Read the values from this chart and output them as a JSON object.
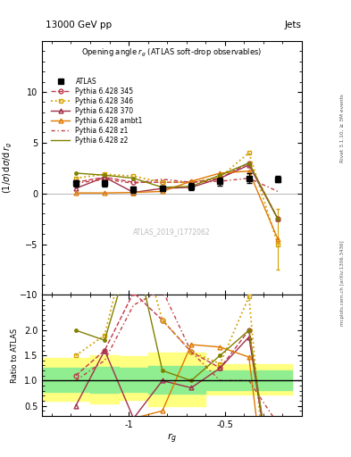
{
  "title_top": "13000 GeV pp",
  "title_right": "Jets",
  "plot_title": "Opening angle r_g (ATLAS soft-drop observables)",
  "ylabel_main": "(1/σ) dσ/d r_g",
  "ylabel_ratio": "Ratio to ATLAS",
  "xlabel": "r_g",
  "atlas_label": "ATLAS_2019_I1772062",
  "rivet_label": "Rivet 3.1.10, ≥ 3M events",
  "arxiv_label": "mcplots.cern.ch [arXiv:1306.3436]",
  "ylim_main": [
    -10,
    15
  ],
  "ylim_ratio": [
    0.3,
    2.7
  ],
  "xlim": [
    -1.45,
    -0.1
  ],
  "x": [
    -1.275,
    -1.125,
    -0.975,
    -0.825,
    -0.675,
    -0.525,
    -0.375,
    -0.225
  ],
  "bin_edges": [
    -1.45,
    -1.2,
    -1.05,
    -0.9,
    -0.75,
    -0.6,
    -0.45,
    -0.3,
    -0.15
  ],
  "atlas_y": [
    1.0,
    1.0,
    0.4,
    0.5,
    0.7,
    1.2,
    1.5,
    1.4
  ],
  "atlas_yerr": [
    0.3,
    0.3,
    0.3,
    0.3,
    0.35,
    0.4,
    0.5,
    0.3
  ],
  "p345_y": [
    1.1,
    1.6,
    1.1,
    1.1,
    1.1,
    1.5,
    3.0,
    -2.5
  ],
  "p346_y": [
    1.5,
    1.9,
    1.7,
    1.1,
    1.1,
    1.6,
    4.0,
    -5.0
  ],
  "p370_y": [
    0.5,
    1.6,
    0.1,
    0.5,
    0.6,
    1.5,
    2.8,
    -2.5
  ],
  "pambt1_y": [
    0.05,
    0.05,
    0.1,
    0.2,
    1.2,
    2.0,
    2.2,
    -4.5
  ],
  "pz1_y": [
    1.0,
    1.4,
    1.0,
    1.4,
    1.1,
    1.2,
    1.5,
    0.2
  ],
  "pz2_y": [
    2.0,
    1.8,
    1.5,
    0.6,
    0.7,
    1.8,
    3.0,
    -2.5
  ],
  "color_345": "#c0394b",
  "color_346": "#d4a000",
  "color_370": "#a0304a",
  "color_ambt1": "#e07800",
  "color_z1": "#c04040",
  "color_z2": "#808000",
  "yellow_lo": [
    0.6,
    0.55,
    0.62,
    0.5,
    0.5,
    0.72,
    0.72,
    0.72
  ],
  "yellow_hi": [
    1.45,
    1.5,
    1.48,
    1.55,
    1.55,
    1.32,
    1.32,
    1.32
  ],
  "green_lo": [
    0.78,
    0.76,
    0.78,
    0.74,
    0.74,
    0.82,
    0.82,
    0.82
  ],
  "green_hi": [
    1.25,
    1.27,
    1.25,
    1.29,
    1.29,
    1.2,
    1.2,
    1.2
  ],
  "yticks_main": [
    -10,
    -5,
    0,
    5,
    10
  ],
  "yticks_ratio": [
    0.5,
    1.0,
    1.5,
    2.0
  ],
  "xticks": [
    -1.0,
    -0.5
  ],
  "xticklabels": [
    "-1",
    "-0.5"
  ]
}
